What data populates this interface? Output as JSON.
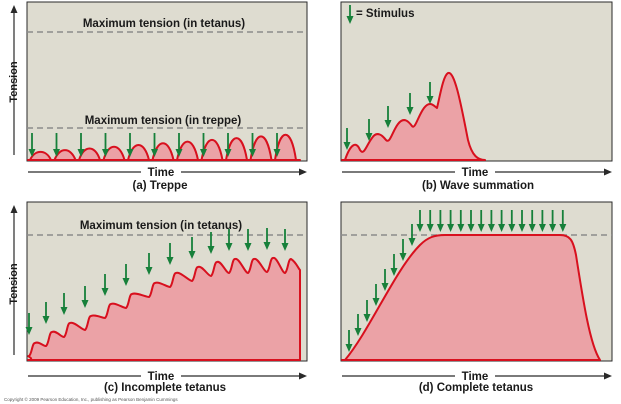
{
  "colors": {
    "panel_background": "#dedcd0",
    "curve_fill": "#eba2a6",
    "curve_stroke": "#d8101e",
    "stimulus_arrow": "#17803a",
    "dashed_line": "#8b8b8b"
  },
  "y_axis_label": "Tension",
  "x_axis_label": "Time",
  "legend": {
    "stimulus": "= Stimulus",
    "icon": "down-arrow-icon"
  },
  "panels": {
    "a": {
      "caption": "(a) Treppe",
      "labels": [
        "Maximum tension (in tetanus)",
        "Maximum tension (in treppe)"
      ]
    },
    "b": {
      "caption": "(b) Wave summation"
    },
    "c": {
      "caption": "(c) Incomplete tetanus",
      "labels": [
        "Maximum tension (in tetanus)"
      ]
    },
    "d": {
      "caption": "(d) Complete tetanus"
    }
  },
  "copyright": "Copyright © 2009 Pearson Education, Inc., publishing as Pearson Benjamin Cummings"
}
